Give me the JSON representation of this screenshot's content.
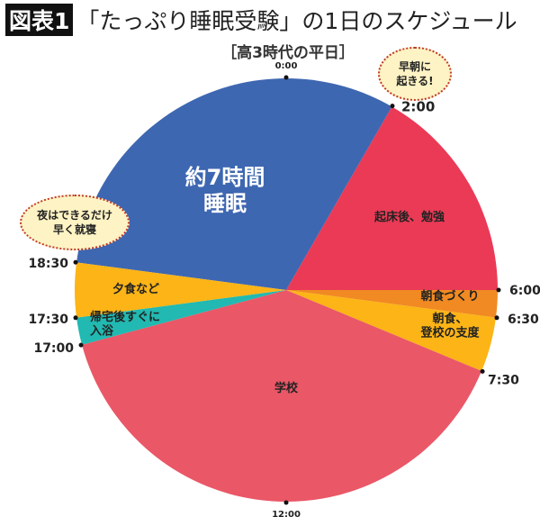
{
  "header": {
    "badge": "図表1",
    "title": "「たっぷり睡眠受験」の1日のスケジュール",
    "subtitle": "［高3時代の平日］"
  },
  "callouts": {
    "early": "早朝に\n起きる!",
    "night": "夜はできるだけ\n早く就寝"
  },
  "chart_data": {
    "type": "pie",
    "title": "「たっぷり睡眠受験」の1日のスケジュール",
    "subtitle": "高3時代の平日",
    "unit": "hours (24-hour clock, 0:00 at top, clockwise)",
    "slices": [
      {
        "label": "約7時間\n睡眠",
        "start": "18:30",
        "end": "2:00",
        "color": "#3e67b1"
      },
      {
        "label": "起床後、勉強",
        "start": "2:00",
        "end": "6:00",
        "color": "#ea3a56"
      },
      {
        "label": "朝食づくり",
        "start": "6:00",
        "end": "6:30",
        "color": "#f18a22"
      },
      {
        "label": "朝食、\n登校の支度",
        "start": "6:30",
        "end": "7:30",
        "color": "#fcb416"
      },
      {
        "label": "学校",
        "start": "7:30",
        "end": "17:00",
        "color": "#ea5767"
      },
      {
        "label": "帰宅後すぐに\n入浴",
        "start": "17:00",
        "end": "17:30",
        "color": "#21b9b1"
      },
      {
        "label": "夕食など",
        "start": "17:30",
        "end": "18:30",
        "color": "#fcb416"
      }
    ],
    "tick_labels": [
      "0:00",
      "2:00",
      "6:00",
      "6:30",
      "7:30",
      "12:00",
      "17:00",
      "17:30",
      "18:30"
    ]
  }
}
